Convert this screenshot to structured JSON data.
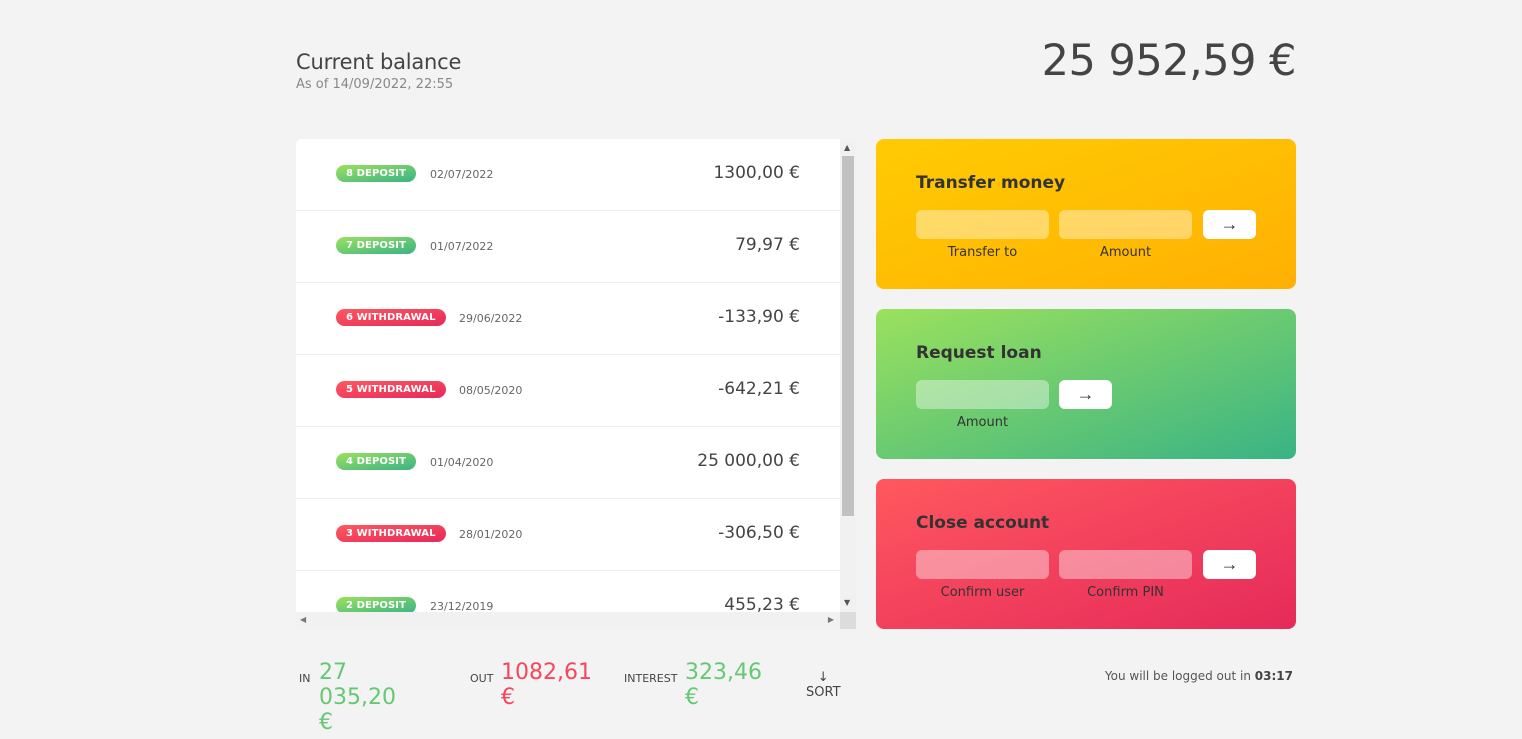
{
  "balance": {
    "title": "Current balance",
    "date_prefix": "As of",
    "date": "14/09/2022, 22:55",
    "value": "25 952,59 €"
  },
  "movements": [
    {
      "type": "8 deposit",
      "kind": "deposit",
      "date": "02/07/2022",
      "value": "1300,00 €"
    },
    {
      "type": "7 deposit",
      "kind": "deposit",
      "date": "01/07/2022",
      "value": "79,97 €"
    },
    {
      "type": "6 withdrawal",
      "kind": "withdrawal",
      "date": "29/06/2022",
      "value": "-133,90 €"
    },
    {
      "type": "5 withdrawal",
      "kind": "withdrawal",
      "date": "08/05/2020",
      "value": "-642,21 €"
    },
    {
      "type": "4 deposit",
      "kind": "deposit",
      "date": "01/04/2020",
      "value": "25 000,00 €"
    },
    {
      "type": "3 withdrawal",
      "kind": "withdrawal",
      "date": "28/01/2020",
      "value": "-306,50 €"
    },
    {
      "type": "2 deposit",
      "kind": "deposit",
      "date": "23/12/2019",
      "value": "455,23 €"
    }
  ],
  "operations": {
    "transfer": {
      "title": "Transfer money",
      "to_label": "Transfer to",
      "amount_label": "Amount",
      "button": "→"
    },
    "loan": {
      "title": "Request loan",
      "amount_label": "Amount",
      "button": "→"
    },
    "close": {
      "title": "Close account",
      "user_label": "Confirm user",
      "pin_label": "Confirm PIN",
      "button": "→"
    }
  },
  "summary": {
    "in_label": "In",
    "in_value": "27 035,20 €",
    "out_label": "Out",
    "out_value": "1082,61 €",
    "interest_label": "Interest",
    "interest_value": "323,46 €",
    "sort_label": "↓ SORT"
  },
  "logout": {
    "text": "You will be logged out in",
    "timer": "03:17"
  },
  "colors": {
    "deposit": "#66c873",
    "withdrawal": "#f5465d",
    "transfer_bg": "#ffb003",
    "loan_bg": "#39b385",
    "close_bg": "#e52a5a"
  }
}
